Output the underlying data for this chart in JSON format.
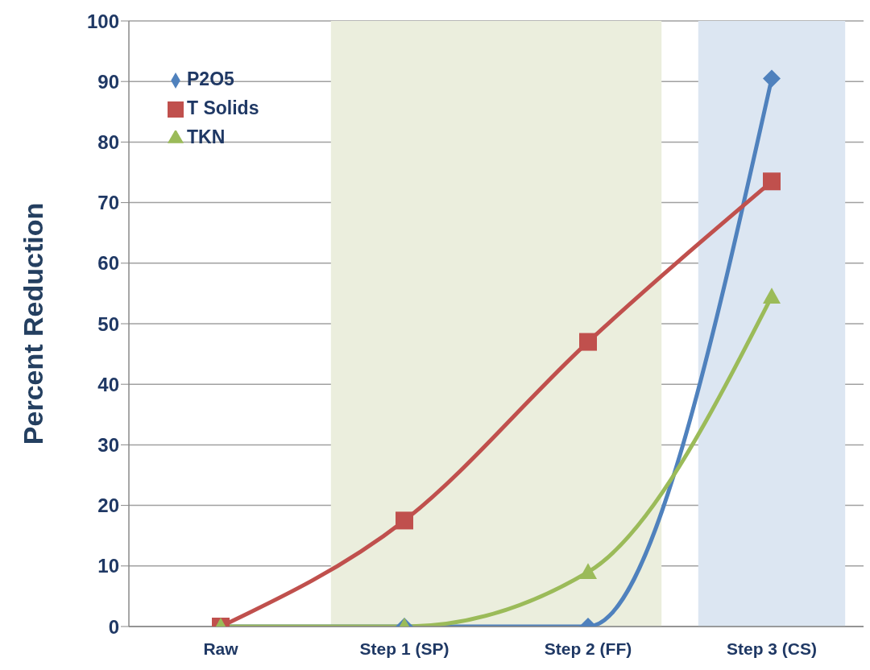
{
  "chart_data": {
    "type": "line",
    "ylabel": "Percent Reduction",
    "categories": [
      "Raw",
      "Step 1  (SP)",
      "Step 2  (FF)",
      "Step 3 (CS)"
    ],
    "series": [
      {
        "name": "P2O5",
        "color": "#4f81bd",
        "marker": "diamond",
        "values": [
          0,
          0,
          0,
          90.5
        ]
      },
      {
        "name": "T Solids",
        "color": "#c0504d",
        "marker": "square",
        "values": [
          0,
          17.5,
          47,
          73.5
        ]
      },
      {
        "name": "TKN",
        "color": "#9bbb59",
        "marker": "triangle",
        "values": [
          0,
          0,
          9,
          54.5
        ]
      }
    ],
    "bands": [
      {
        "axis": "x",
        "from": "Step 1  (SP)",
        "to": "Step 2  (FF)",
        "color": "#ebeedd"
      },
      {
        "axis": "x",
        "from": "Step 3 (CS)",
        "to": "Step 3 (CS)",
        "color": "#dce6f2"
      }
    ],
    "ylim": [
      0,
      100
    ],
    "yticks": [
      0,
      10,
      20,
      30,
      40,
      50,
      60,
      70,
      80,
      90,
      100
    ],
    "grid": "y",
    "legend": "top left"
  }
}
